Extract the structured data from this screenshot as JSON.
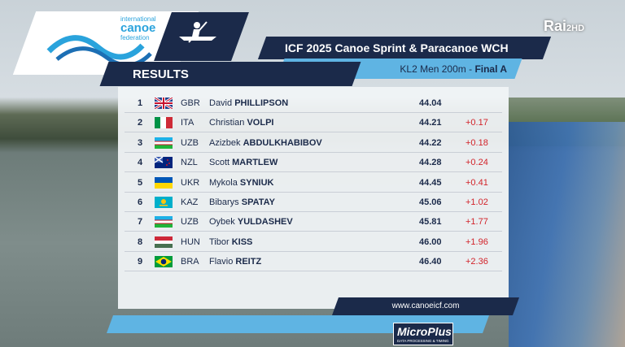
{
  "broadcaster": {
    "name": "Rai",
    "channel": "2HD"
  },
  "logo": {
    "line1": "international",
    "line2": "canoe",
    "line3": "federation"
  },
  "header": {
    "title": "ICF 2025 Canoe Sprint & Paracanoe WCH",
    "section": "RESULTS",
    "event": "KL2 Men 200m - ",
    "phase": "Final A"
  },
  "table": {
    "rows": [
      {
        "rank": "1",
        "country": "GBR",
        "first": "David",
        "last": "PHILLIPSON",
        "time": "44.04",
        "diff": ""
      },
      {
        "rank": "2",
        "country": "ITA",
        "first": "Christian",
        "last": "VOLPI",
        "time": "44.21",
        "diff": "+0.17"
      },
      {
        "rank": "3",
        "country": "UZB",
        "first": "Azizbek",
        "last": "ABDULKHABIBOV",
        "time": "44.22",
        "diff": "+0.18"
      },
      {
        "rank": "4",
        "country": "NZL",
        "first": "Scott",
        "last": "MARTLEW",
        "time": "44.28",
        "diff": "+0.24"
      },
      {
        "rank": "5",
        "country": "UKR",
        "first": "Mykola",
        "last": "SYNIUK",
        "time": "44.45",
        "diff": "+0.41"
      },
      {
        "rank": "6",
        "country": "KAZ",
        "first": "Bibarys",
        "last": "SPATAY",
        "time": "45.06",
        "diff": "+1.02"
      },
      {
        "rank": "7",
        "country": "UZB",
        "first": "Oybek",
        "last": "YULDASHEV",
        "time": "45.81",
        "diff": "+1.77"
      },
      {
        "rank": "8",
        "country": "HUN",
        "first": "Tibor",
        "last": "KISS",
        "time": "46.00",
        "diff": "+1.96"
      },
      {
        "rank": "9",
        "country": "BRA",
        "first": "Flavio",
        "last": "REITZ",
        "time": "46.40",
        "diff": "+2.36"
      }
    ]
  },
  "footer": {
    "website": "www.canoeicf.com",
    "sponsor": "MicroPlus",
    "sponsor_tagline": "DATA PROCESSING & TIMING"
  }
}
